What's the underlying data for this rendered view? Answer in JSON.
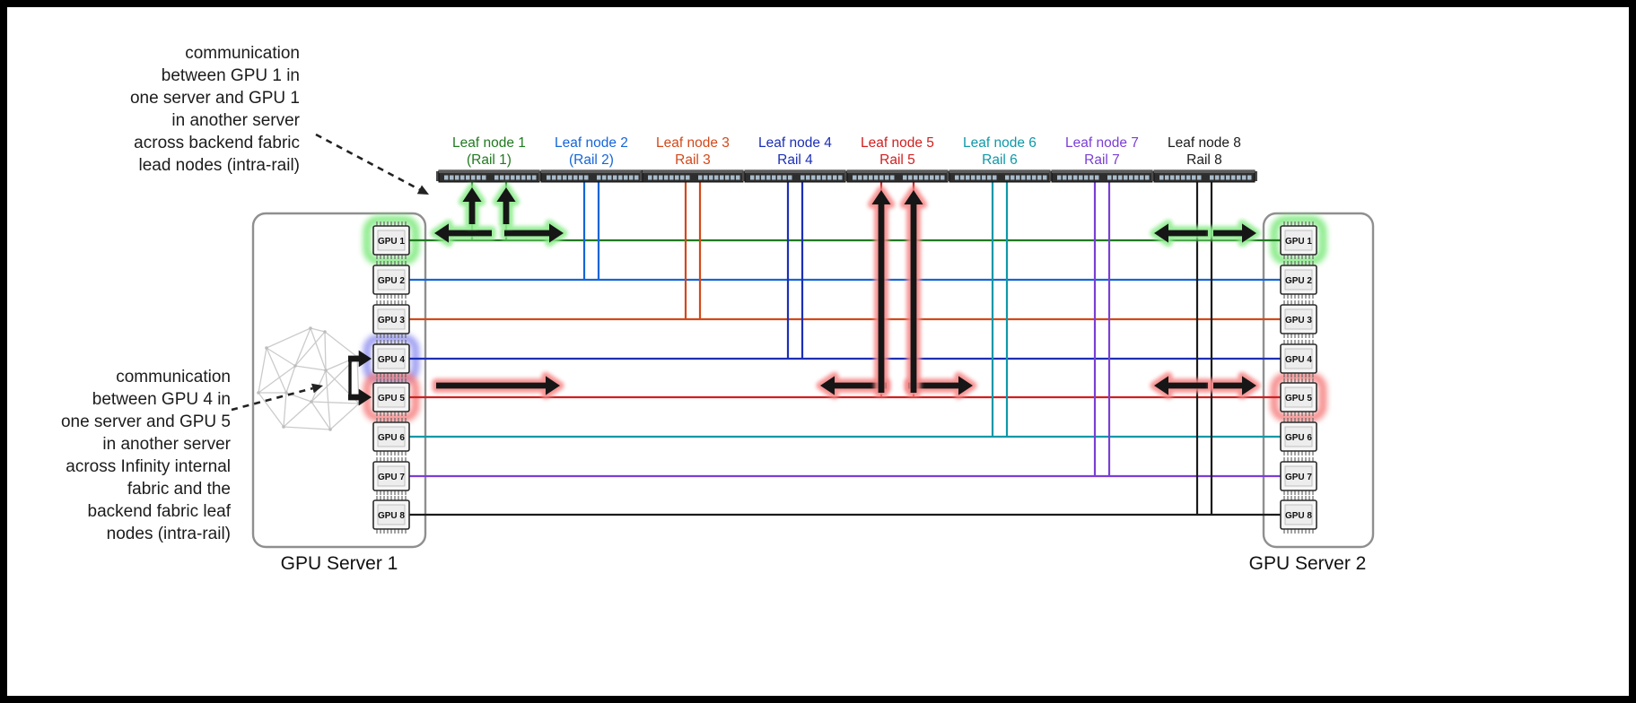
{
  "annotations": {
    "intra_rail": "communication\nbetween GPU 1 in\none server and GPU 1\nin another server\nacross backend fabric\nlead nodes (intra-rail)",
    "inter_gpu": "communication\nbetween GPU 4 in\none server and GPU 5\nin another server\nacross Infinity internal\nfabric and the\nbackend fabric leaf\nnodes (intra-rail)"
  },
  "servers": [
    {
      "label": "GPU Server 1",
      "gpus": [
        "GPU 1",
        "GPU 2",
        "GPU 3",
        "GPU 4",
        "GPU 5",
        "GPU 6",
        "GPU 7",
        "GPU 8"
      ]
    },
    {
      "label": "GPU Server 2",
      "gpus": [
        "GPU 1",
        "GPU 2",
        "GPU 3",
        "GPU 4",
        "GPU 5",
        "GPU 6",
        "GPU 7",
        "GPU 8"
      ]
    }
  ],
  "leaf_nodes": [
    {
      "name": "Leaf node 1",
      "rail": "(Rail 1)",
      "color": "#217a21"
    },
    {
      "name": "Leaf node 2",
      "rail": "(Rail 2)",
      "color": "#1565d8"
    },
    {
      "name": "Leaf node 3",
      "rail": "Rail 3",
      "color": "#d2491a"
    },
    {
      "name": "Leaf node 4",
      "rail": "Rail 4",
      "color": "#1c2fb5"
    },
    {
      "name": "Leaf node 5",
      "rail": "Rail 5",
      "color": "#d02020"
    },
    {
      "name": "Leaf node 6",
      "rail": "Rail 6",
      "color": "#0f98a8"
    },
    {
      "name": "Leaf node 7",
      "rail": "Rail 7",
      "color": "#7a3fd4"
    },
    {
      "name": "Leaf node 8",
      "rail": "Rail 8",
      "color": "#1b1b1b"
    }
  ],
  "glow_map": [
    {
      "server": 0,
      "gpu": 0,
      "color": "#77e877"
    },
    {
      "server": 0,
      "gpu": 3,
      "color": "#9090f0"
    },
    {
      "server": 0,
      "gpu": 4,
      "color": "#f57a7a"
    },
    {
      "server": 1,
      "gpu": 0,
      "color": "#77e877"
    },
    {
      "server": 1,
      "gpu": 4,
      "color": "#f57a7a"
    }
  ],
  "flow_arrows": {
    "rail1": {
      "halo": "#8dec8d"
    },
    "rail5": {
      "halo": "#f78888"
    }
  },
  "highlights": {
    "arrow_color": "#161616"
  }
}
